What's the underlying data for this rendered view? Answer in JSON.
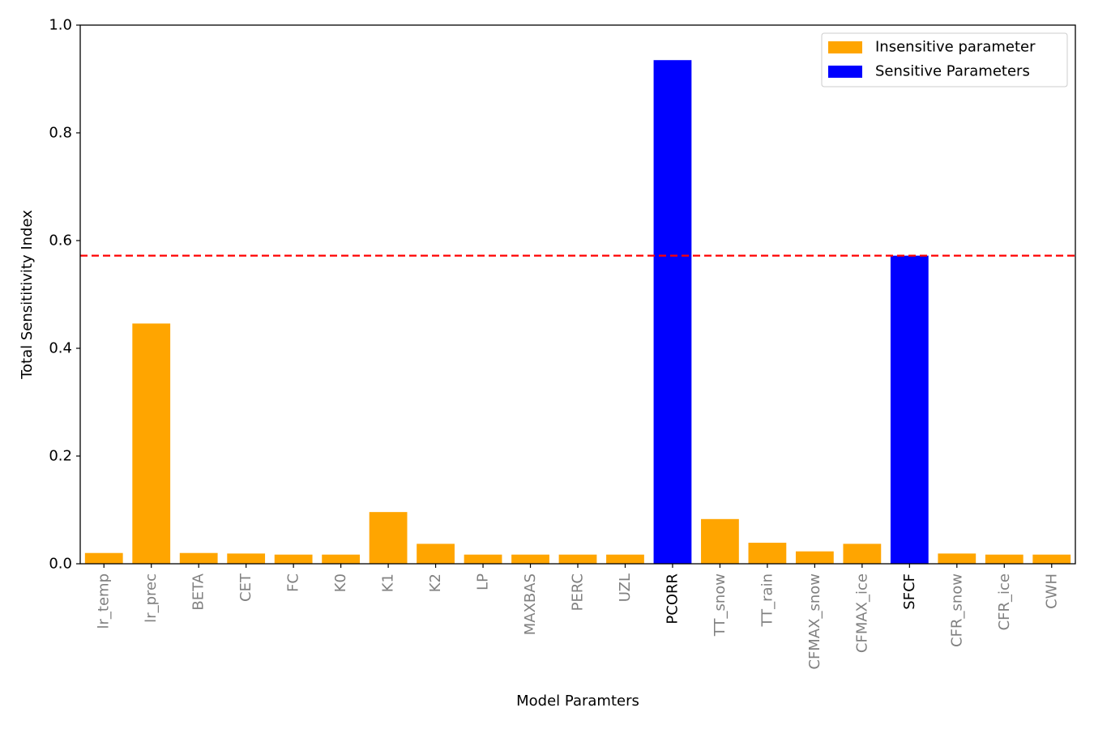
{
  "chart_data": {
    "type": "bar",
    "title": "",
    "xlabel": "Model Paramters",
    "ylabel": "Total Sensititivity Index",
    "ylim": [
      0,
      1.0
    ],
    "yticks": [
      "0.0",
      "0.2",
      "0.4",
      "0.6",
      "0.8",
      "1.0"
    ],
    "yticks_values": [
      0,
      0.2,
      0.4,
      0.6,
      0.8,
      1.0
    ],
    "grid": false,
    "legend_position": "top-right",
    "threshold": {
      "value": 0.572,
      "style": "dashed",
      "color": "#ff0000"
    },
    "categories": [
      "lr_temp",
      "lr_prec",
      "BETA",
      "CET",
      "FC",
      "K0",
      "K1",
      "K2",
      "LP",
      "MAXBAS",
      "PERC",
      "UZL",
      "PCORR",
      "TT_snow",
      "TT_rain",
      "CFMAX_snow",
      "CFMAX_ice",
      "SFCF",
      "CFR_snow",
      "CFR_ice",
      "CWH"
    ],
    "values": [
      0.02,
      0.446,
      0.02,
      0.019,
      0.017,
      0.017,
      0.096,
      0.037,
      0.017,
      0.017,
      0.017,
      0.017,
      0.935,
      0.083,
      0.039,
      0.023,
      0.037,
      0.572,
      0.019,
      0.017,
      0.017
    ],
    "sensitive": [
      false,
      false,
      false,
      false,
      false,
      false,
      false,
      false,
      false,
      false,
      false,
      false,
      true,
      false,
      false,
      false,
      false,
      true,
      false,
      false,
      false
    ],
    "series": [
      {
        "name": "Insensitive parameter",
        "color": "#ffa500"
      },
      {
        "name": "Sensitive Parameters",
        "color": "#0000ff"
      }
    ],
    "label_colors": {
      "sensitive": "#000000",
      "insensitive": "#808080"
    }
  }
}
